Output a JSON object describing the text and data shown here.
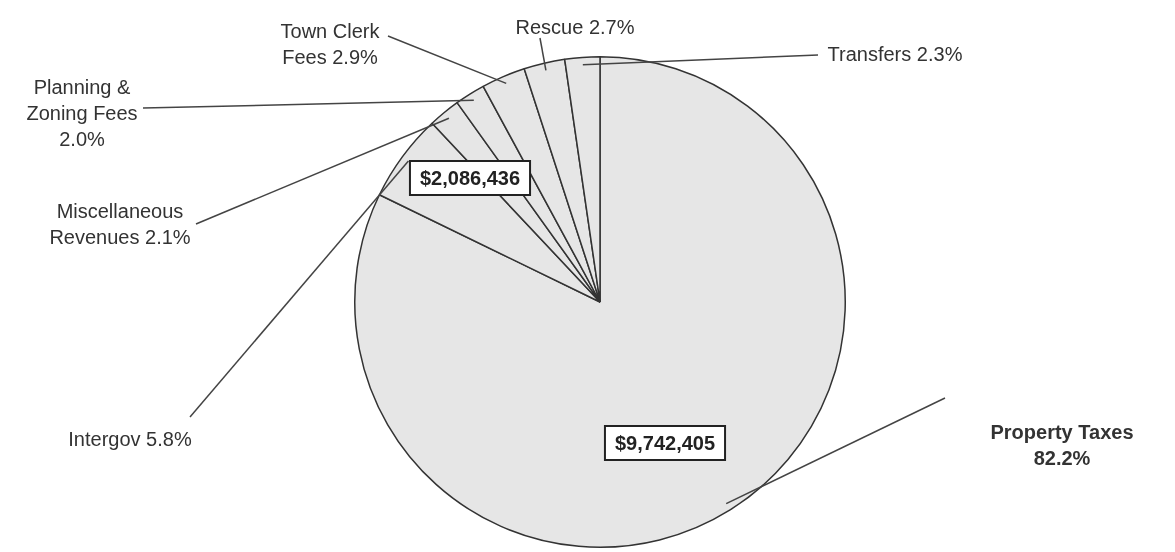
{
  "chart_data": {
    "type": "pie",
    "categories": [
      "Property Taxes",
      "Intergov",
      "Miscellaneous Revenues",
      "Planning & Zoning Fees",
      "Town Clerk Fees",
      "Rescue",
      "Transfers"
    ],
    "values": [
      82.2,
      5.8,
      2.1,
      2.0,
      2.9,
      2.7,
      2.3
    ],
    "value_labels": [
      "82.2%",
      "5.8%",
      "2.1%",
      "2.0%",
      "2.9%",
      "2.7%",
      "2.3%"
    ],
    "colors": [
      "#e6e6e6",
      "#e6e6e6",
      "#e6e6e6",
      "#e6e6e6",
      "#e6e6e6",
      "#e6e6e6",
      "#e6e6e6"
    ],
    "annotations": [
      "$9,742,405",
      "$2,086,436"
    ],
    "legend": false
  }
}
